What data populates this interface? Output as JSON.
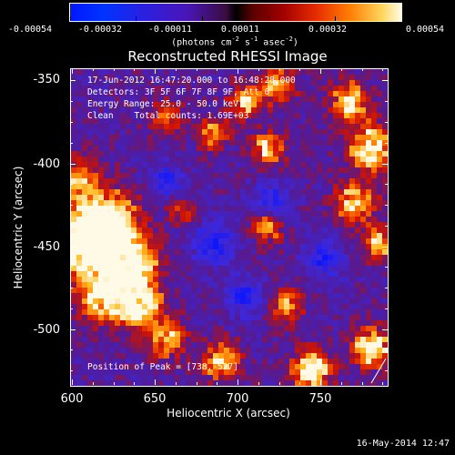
{
  "colorbar": {
    "ticks": [
      "-0.00054",
      "-0.00032",
      "-0.00011",
      "0.00011",
      "0.00032",
      "0.00054"
    ],
    "unit_prefix": "(photons cm",
    "unit_exp1": "-2",
    "unit_mid": " s",
    "unit_exp2": "-1",
    "unit_mid2": " asec",
    "unit_exp3": "-2",
    "unit_suffix": ")"
  },
  "plot": {
    "title": "Reconstructed RHESSI Image",
    "xlabel": "Heliocentric X (arcsec)",
    "ylabel": "Heliocentric Y (arcsec)",
    "x_ticks": [
      "600",
      "650",
      "700",
      "750"
    ],
    "y_ticks": [
      "-350",
      "-400",
      "-450",
      "-500"
    ]
  },
  "annotations": {
    "time_range": "17-Jun-2012 16:47:20.000 to 16:48:28.000",
    "detectors": "Detectors: 3F 5F 6F 7F 8F 9F, Att 0",
    "energy": "Energy Range: 25.0 - 50.0 keV",
    "clean": "Clean    Total counts: 1.69E+03",
    "peak": "Position of Peak = [738,-527]"
  },
  "timestamp": "16-May-2014 12:47",
  "chart_data": {
    "type": "heatmap",
    "title": "Reconstructed RHESSI Image",
    "xlabel": "Heliocentric X (arcsec)",
    "ylabel": "Heliocentric Y (arcsec)",
    "xlim": [
      600,
      790
    ],
    "ylim": [
      -533,
      -343
    ],
    "colorbar_range": [
      -0.00054,
      0.00054
    ],
    "colorbar_ticks": [
      -0.00054,
      -0.00032,
      -0.00011,
      0.00011,
      0.00032,
      0.00054
    ],
    "peak_position": [
      738,
      -527
    ]
  },
  "colors": {
    "background": "#000000",
    "text": "#ffffff",
    "low": "#0018ff",
    "mid": "#4a16b8",
    "high": "#fffbe6"
  }
}
